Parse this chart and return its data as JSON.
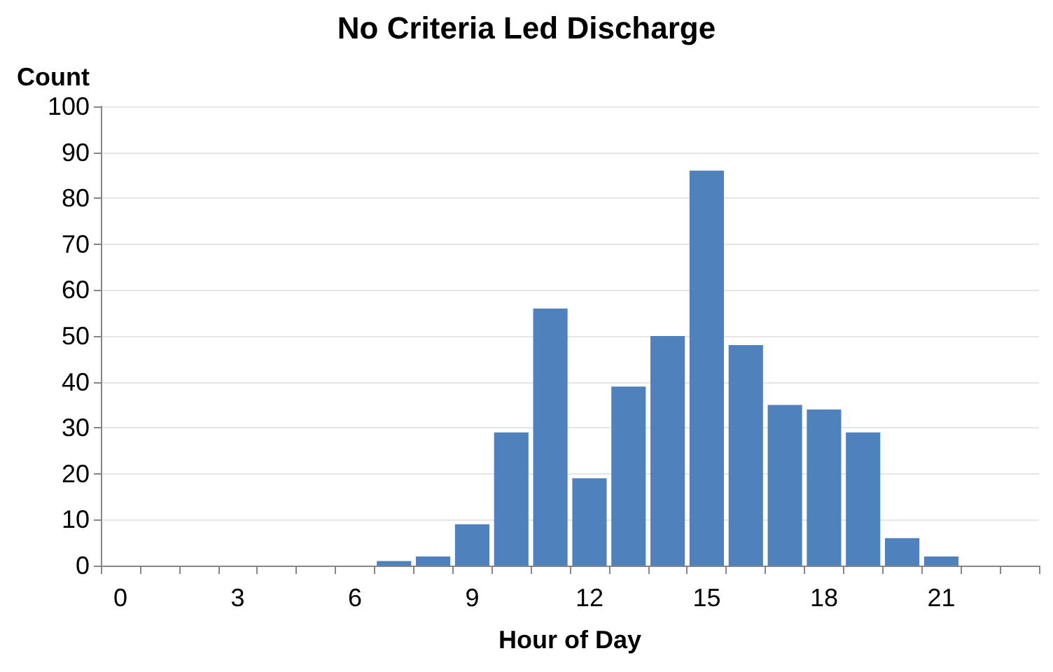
{
  "chart_data": {
    "type": "bar",
    "title": "No Criteria Led Discharge",
    "xlabel": "Hour of Day",
    "ylabel": "Count",
    "categories": [
      "0",
      null,
      null,
      "3",
      null,
      null,
      "6",
      null,
      null,
      "9",
      null,
      null,
      "12",
      null,
      null,
      "15",
      null,
      null,
      "18",
      null,
      null,
      "21",
      null,
      null
    ],
    "values": [
      0,
      0,
      0,
      0,
      0,
      0,
      0,
      1,
      2,
      9,
      29,
      56,
      19,
      39,
      50,
      86,
      48,
      35,
      34,
      29,
      6,
      2,
      0,
      0
    ],
    "color": "#4f81bd",
    "ylim": [
      0,
      100
    ],
    "yticks": [
      0,
      10,
      20,
      30,
      40,
      50,
      60,
      70,
      80,
      90,
      100
    ],
    "grid": "y"
  }
}
